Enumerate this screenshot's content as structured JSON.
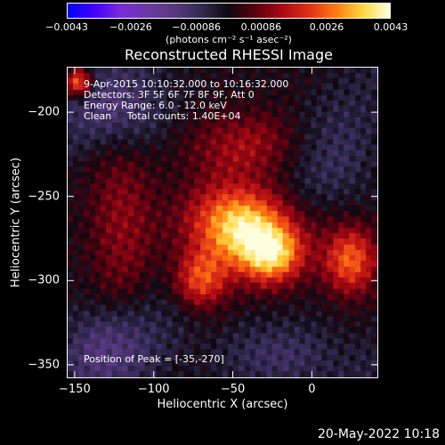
{
  "chart_data": {
    "type": "heatmap",
    "title": "Reconstructed RHESSI Image",
    "xlabel": "Heliocentric X (arcsec)",
    "ylabel": "Heliocentric Y (arcsec)",
    "xlim": [
      -155,
      42
    ],
    "ylim": [
      -358,
      -173
    ],
    "x_ticks": [
      {
        "label": "−150",
        "value": -150
      },
      {
        "label": "−100",
        "value": -100
      },
      {
        "label": "−50",
        "value": -50
      },
      {
        "label": "0",
        "value": 0
      }
    ],
    "y_ticks": [
      {
        "label": "−200",
        "value": -200
      },
      {
        "label": "−250",
        "value": -250
      },
      {
        "label": "−300",
        "value": -300
      },
      {
        "label": "−350",
        "value": -350
      }
    ],
    "colorbar": {
      "range": [
        -0.0043,
        0.0043
      ],
      "ticks": [
        {
          "label": "−0.0043",
          "value": -0.0043
        },
        {
          "label": "−0.0026",
          "value": -0.0026
        },
        {
          "label": "−0.00086",
          "value": -0.00086
        },
        {
          "label": "0.00086",
          "value": 0.00086
        },
        {
          "label": "0.0026",
          "value": 0.0026
        },
        {
          "label": "0.0043",
          "value": 0.0043
        }
      ],
      "unit": "(photons cm⁻² s⁻¹ asec⁻²)",
      "colors": [
        "#0000ff",
        "#4400ff",
        "#7a2cd8",
        "#6a3aa0",
        "#5a3880",
        "#302a50",
        "#100810",
        "#5a0010",
        "#aa0a12",
        "#e03018",
        "#ff7a10",
        "#ffd840",
        "#ffffe0"
      ]
    },
    "annotations": [
      "9-Apr-2015 10:10:32.000 to 10:16:32.000",
      "Detectors: 3F 5F 6F 7F 8F 9F, Att 0",
      "Energy Range: 6.0 - 12.0 keV",
      "Clean     Total counts: 1.40E+04"
    ],
    "peak_label": "Position of Peak = [-35,-270]",
    "peak": {
      "x": -35,
      "y": -270
    },
    "sources": [
      {
        "x": -45,
        "y": -268,
        "sx": 22,
        "sy": 17,
        "amp": 0.0042
      },
      {
        "x": -25,
        "y": -285,
        "sx": 14,
        "sy": 12,
        "amp": 0.003
      },
      {
        "x": -70,
        "y": -300,
        "sx": 12,
        "sy": 12,
        "amp": 0.0025
      },
      {
        "x": 25,
        "y": -288,
        "sx": 12,
        "sy": 14,
        "amp": 0.0026
      },
      {
        "x": -40,
        "y": -220,
        "sx": 28,
        "sy": 14,
        "amp": 0.0013
      },
      {
        "x": -120,
        "y": -265,
        "sx": 15,
        "sy": 40,
        "amp": 0.0011
      },
      {
        "x": -148,
        "y": -182,
        "sx": 6,
        "sy": 6,
        "amp": 0.003
      }
    ],
    "negative_regions": [
      {
        "x": -120,
        "y": -200,
        "sx": 22,
        "sy": 18,
        "amp": -0.0012
      },
      {
        "x": -130,
        "y": -340,
        "sx": 22,
        "sy": 18,
        "amp": -0.0011
      },
      {
        "x": -20,
        "y": -345,
        "sx": 28,
        "sy": 14,
        "amp": -0.0009
      },
      {
        "x": 15,
        "y": -230,
        "sx": 20,
        "sy": 20,
        "amp": -0.0006
      }
    ]
  },
  "timestamp": "20-May-2022 10:18"
}
